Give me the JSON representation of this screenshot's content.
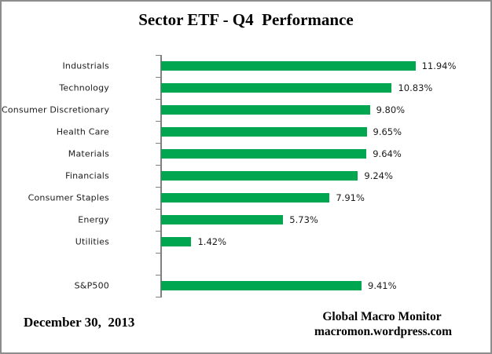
{
  "header": {
    "title": "Sector ETF - Q4  Performance"
  },
  "chart_data": {
    "type": "bar",
    "orientation": "horizontal",
    "title": "Sector ETF - Q4  Performance",
    "categories": [
      "Industrials",
      "Technology",
      "Consumer Discretionary",
      "Health Care",
      "Materials",
      "Financials",
      "Consumer Staples",
      "Energy",
      "Utilities",
      "S&P500"
    ],
    "values": [
      11.94,
      10.83,
      9.8,
      9.65,
      9.64,
      9.24,
      7.91,
      5.73,
      1.42,
      9.41
    ],
    "value_labels": [
      "11.94%",
      "10.83%",
      "9.80%",
      "9.65%",
      "9.64%",
      "9.24%",
      "7.91%",
      "5.73%",
      "1.42%",
      "9.41%"
    ],
    "gap_after_index": 8,
    "bar_color": "#00A650",
    "axis_color": "#808080",
    "grid": false,
    "value_axis_visible": false,
    "xlim": [
      0,
      15.6
    ],
    "legend": "none"
  },
  "footer": {
    "left_date": "December 30,  2013",
    "right_line1": "Global Macro Monitor",
    "right_line2": "macromon.wordpress.com"
  }
}
